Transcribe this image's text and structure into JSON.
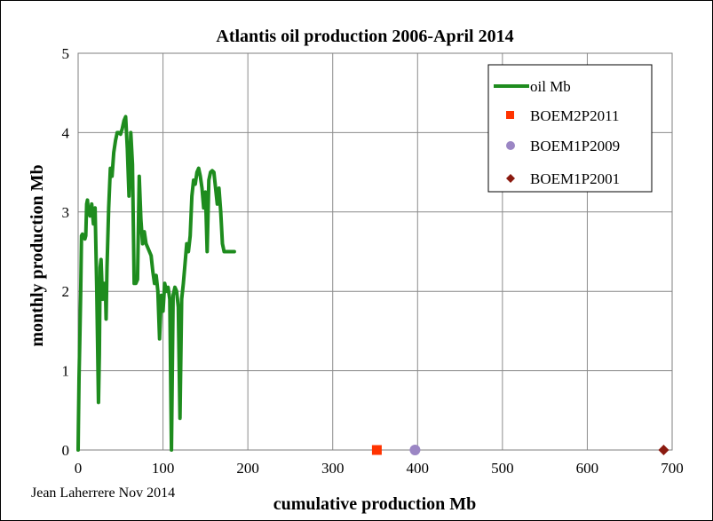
{
  "chart_data": {
    "type": "scatter",
    "title": "Atlantis oil production 2006-April 2014",
    "xlabel": "cumulative production Mb",
    "ylabel": "monthly production Mb",
    "xlim": [
      0,
      700
    ],
    "ylim": [
      0,
      5
    ],
    "x_ticks": [
      "0",
      "100",
      "200",
      "300",
      "400",
      "500",
      "600",
      "700"
    ],
    "y_ticks": [
      "0",
      "1",
      "2",
      "3",
      "4",
      "5"
    ],
    "grid": true,
    "legend_position": "top-right",
    "credit": "Jean Laherrere Nov 2014",
    "series": [
      {
        "name": "oil Mb",
        "kind": "line",
        "color": "#1e8c1e",
        "x": [
          0,
          0.3,
          1,
          2,
          3,
          4,
          5,
          6,
          7,
          8,
          9,
          10,
          11,
          12,
          14,
          16,
          18,
          20,
          22,
          24,
          25,
          26,
          27,
          28,
          29,
          30,
          31,
          32,
          33,
          34,
          36,
          38,
          40,
          42,
          44,
          46,
          48,
          50,
          52,
          54,
          56,
          58,
          60,
          62,
          64,
          66,
          68,
          70,
          72,
          74,
          76,
          78,
          80,
          82,
          84,
          86,
          88,
          90,
          92,
          94,
          96,
          98,
          100,
          102,
          104,
          106,
          108,
          110,
          112,
          114,
          116,
          118,
          120,
          122,
          124,
          126,
          128,
          130,
          132,
          134,
          136,
          138,
          140,
          142,
          144,
          146,
          148,
          150,
          152,
          154,
          156,
          158,
          160,
          162,
          164,
          166,
          168,
          170,
          172,
          174,
          176,
          178,
          180,
          182,
          184
        ],
        "y": [
          0,
          0.3,
          0.9,
          1.4,
          2.0,
          2.7,
          2.72,
          2.7,
          2.68,
          2.66,
          2.7,
          3.1,
          3.15,
          3.0,
          2.95,
          3.1,
          2.85,
          3.05,
          2.0,
          0.6,
          1.2,
          2.3,
          2.4,
          2.1,
          1.9,
          2.1,
          2.05,
          2.1,
          1.65,
          2.3,
          3.05,
          3.55,
          3.45,
          3.75,
          3.9,
          4.0,
          4.0,
          3.98,
          4.05,
          4.15,
          4.2,
          3.8,
          3.2,
          4.0,
          3.6,
          2.1,
          2.1,
          2.15,
          3.45,
          2.9,
          2.6,
          2.75,
          2.6,
          2.55,
          2.5,
          2.45,
          2.25,
          2.1,
          2.2,
          2.0,
          1.4,
          1.95,
          1.75,
          2.1,
          2.0,
          2.05,
          1.9,
          0.0,
          1.95,
          2.05,
          2.0,
          1.8,
          0.4,
          1.9,
          2.1,
          2.35,
          2.6,
          2.5,
          2.7,
          3.2,
          3.4,
          3.35,
          3.5,
          3.55,
          3.45,
          3.3,
          3.05,
          3.25,
          2.5,
          3.4,
          3.5,
          3.52,
          3.5,
          3.3,
          3.1,
          3.3,
          3.0,
          2.6,
          2.5,
          2.5,
          2.5,
          2.5,
          2.5,
          2.5,
          2.5
        ]
      },
      {
        "name": "BOEM2P2011",
        "kind": "marker",
        "marker": "square",
        "color": "#ff3300",
        "x": [
          352
        ],
        "y": [
          0
        ]
      },
      {
        "name": "BOEM1P2009",
        "kind": "marker",
        "marker": "circle",
        "color": "#9b86c4",
        "x": [
          397
        ],
        "y": [
          0
        ]
      },
      {
        "name": "BOEM1P2001",
        "kind": "marker",
        "marker": "diamond",
        "color": "#8b1a10",
        "x": [
          690
        ],
        "y": [
          0
        ]
      }
    ]
  }
}
